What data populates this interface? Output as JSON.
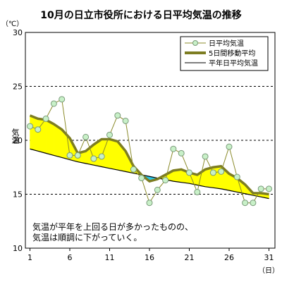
{
  "chart_data": {
    "type": "line",
    "title": "10月の日立市役所における日平均気温の推移",
    "ylabel": "気温",
    "y_unit": "（℃）",
    "x_unit": "（日）",
    "ylim": [
      10,
      30
    ],
    "y_ticks": [
      "10",
      "15",
      "20",
      "25",
      "30"
    ],
    "xlim": [
      1,
      31
    ],
    "x_ticks": [
      "1",
      "6",
      "11",
      "16",
      "21",
      "26",
      "31"
    ],
    "grid": "dashed horizontal at 15, 20, 25",
    "legend_position": "top-right",
    "x": [
      1,
      2,
      3,
      4,
      5,
      6,
      7,
      8,
      9,
      10,
      11,
      12,
      13,
      14,
      15,
      16,
      17,
      18,
      19,
      20,
      21,
      22,
      23,
      24,
      25,
      26,
      27,
      28,
      29,
      30,
      31
    ],
    "series": [
      {
        "name": "日平均気温",
        "style": "thin olive line with light-green circle markers",
        "color": "#8b8b2b",
        "marker_color": "#c8f0c8",
        "values": [
          21.3,
          21.0,
          22.0,
          23.4,
          23.8,
          18.6,
          18.6,
          20.3,
          18.3,
          18.5,
          20.5,
          22.3,
          21.8,
          17.3,
          16.5,
          14.2,
          15.4,
          16.3,
          19.2,
          18.8,
          17.0,
          15.2,
          18.5,
          17.0,
          17.1,
          19.4,
          16.6,
          14.2,
          14.2,
          15.5,
          15.5
        ]
      },
      {
        "name": "5日間移動平均",
        "style": "thick olive line",
        "color": "#7d7d22",
        "values": [
          22.3,
          22.0,
          21.9,
          21.5,
          21.0,
          20.2,
          18.8,
          19.0,
          19.6,
          20.1,
          20.1,
          19.9,
          19.0,
          17.6,
          16.8,
          16.2,
          16.4,
          16.8,
          17.2,
          17.3,
          17.0,
          16.8,
          17.3,
          17.5,
          17.6,
          16.9,
          16.5,
          15.9,
          15.1,
          15.1,
          15.0
        ]
      },
      {
        "name": "平年日平均気温",
        "style": "thin black line",
        "color": "#000000",
        "values": [
          19.2,
          19.0,
          18.8,
          18.6,
          18.4,
          18.2,
          18.0,
          17.85,
          17.7,
          17.55,
          17.4,
          17.25,
          17.1,
          16.95,
          16.8,
          16.65,
          16.5,
          16.35,
          16.2,
          16.1,
          16.0,
          15.85,
          15.7,
          15.6,
          15.5,
          15.35,
          15.2,
          15.05,
          14.9,
          14.75,
          14.6
        ]
      }
    ],
    "fill_above_normal_color": "#ffff00",
    "fill_below_normal_color": "#29c5e8",
    "annotation": [
      "気温が平年を上回る日が多かったものの、",
      "気温は順調に下がっていく。"
    ]
  }
}
